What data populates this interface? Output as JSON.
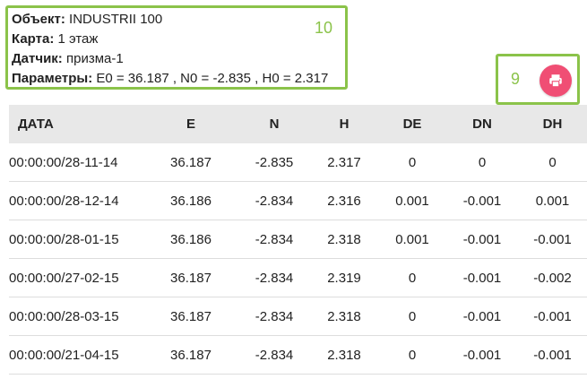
{
  "info": {
    "object_label": "Объект:",
    "object_value": "INDUSTRII 100",
    "map_label": "Карта:",
    "map_value": "1 этаж",
    "sensor_label": "Датчик:",
    "sensor_value": "призма-1",
    "params_label": "Параметры:",
    "params_value": "E0 = 36.187 , N0 = -2.835 , H0 = 2.317",
    "badge": "10"
  },
  "print": {
    "badge": "9",
    "icon": "printer-icon"
  },
  "colors": {
    "highlight_border": "#8bc34a",
    "print_button": "#f04e74",
    "header_bg": "#e8e8e8"
  },
  "table": {
    "headers": [
      "ДАТА",
      "E",
      "N",
      "H",
      "DE",
      "DN",
      "DH"
    ],
    "rows": [
      [
        "00:00:00/28-11-14",
        "36.187",
        "-2.835",
        "2.317",
        "0",
        "0",
        "0"
      ],
      [
        "00:00:00/28-12-14",
        "36.186",
        "-2.834",
        "2.316",
        "0.001",
        "-0.001",
        "0.001"
      ],
      [
        "00:00:00/28-01-15",
        "36.186",
        "-2.834",
        "2.318",
        "0.001",
        "-0.001",
        "-0.001"
      ],
      [
        "00:00:00/27-02-15",
        "36.187",
        "-2.834",
        "2.319",
        "0",
        "-0.001",
        "-0.002"
      ],
      [
        "00:00:00/28-03-15",
        "36.187",
        "-2.834",
        "2.318",
        "0",
        "-0.001",
        "-0.001"
      ],
      [
        "00:00:00/21-04-15",
        "36.187",
        "-2.834",
        "2.318",
        "0",
        "-0.001",
        "-0.001"
      ]
    ]
  }
}
